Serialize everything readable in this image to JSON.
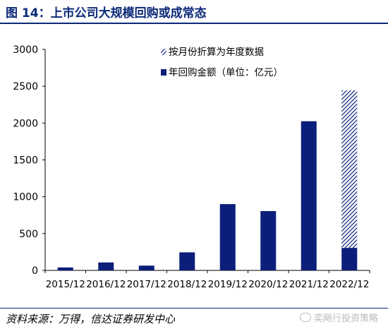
{
  "header": {
    "title": "图 14：上市公司大规模回购或成常态"
  },
  "footer": {
    "source": "资料来源：万得，信达证券研发中心",
    "watermark": "奕飏行投资策略"
  },
  "colors": {
    "bar": "#0b1f7a",
    "hatch": "#0b1f7a",
    "title": "#0b2a78"
  },
  "chart_data": {
    "type": "bar",
    "categories": [
      "2015/12",
      "2016/12",
      "2017/12",
      "2018/12",
      "2019/12",
      "2020/12",
      "2021/12",
      "2022/12"
    ],
    "series": [
      {
        "name": "年回购金额（单位：亿元）",
        "values": [
          40,
          108,
          65,
          245,
          900,
          805,
          2025,
          305
        ],
        "style": "solid"
      },
      {
        "name": "按月份折算为年度数据",
        "values": [
          null,
          null,
          null,
          null,
          null,
          null,
          null,
          2445
        ],
        "style": "hatched"
      }
    ],
    "ylim": [
      0,
      3000
    ],
    "yticks": [
      0,
      500,
      1000,
      1500,
      2000,
      2500,
      3000
    ],
    "xlabel": "",
    "ylabel": "",
    "legend": "top-center",
    "grid": false
  }
}
